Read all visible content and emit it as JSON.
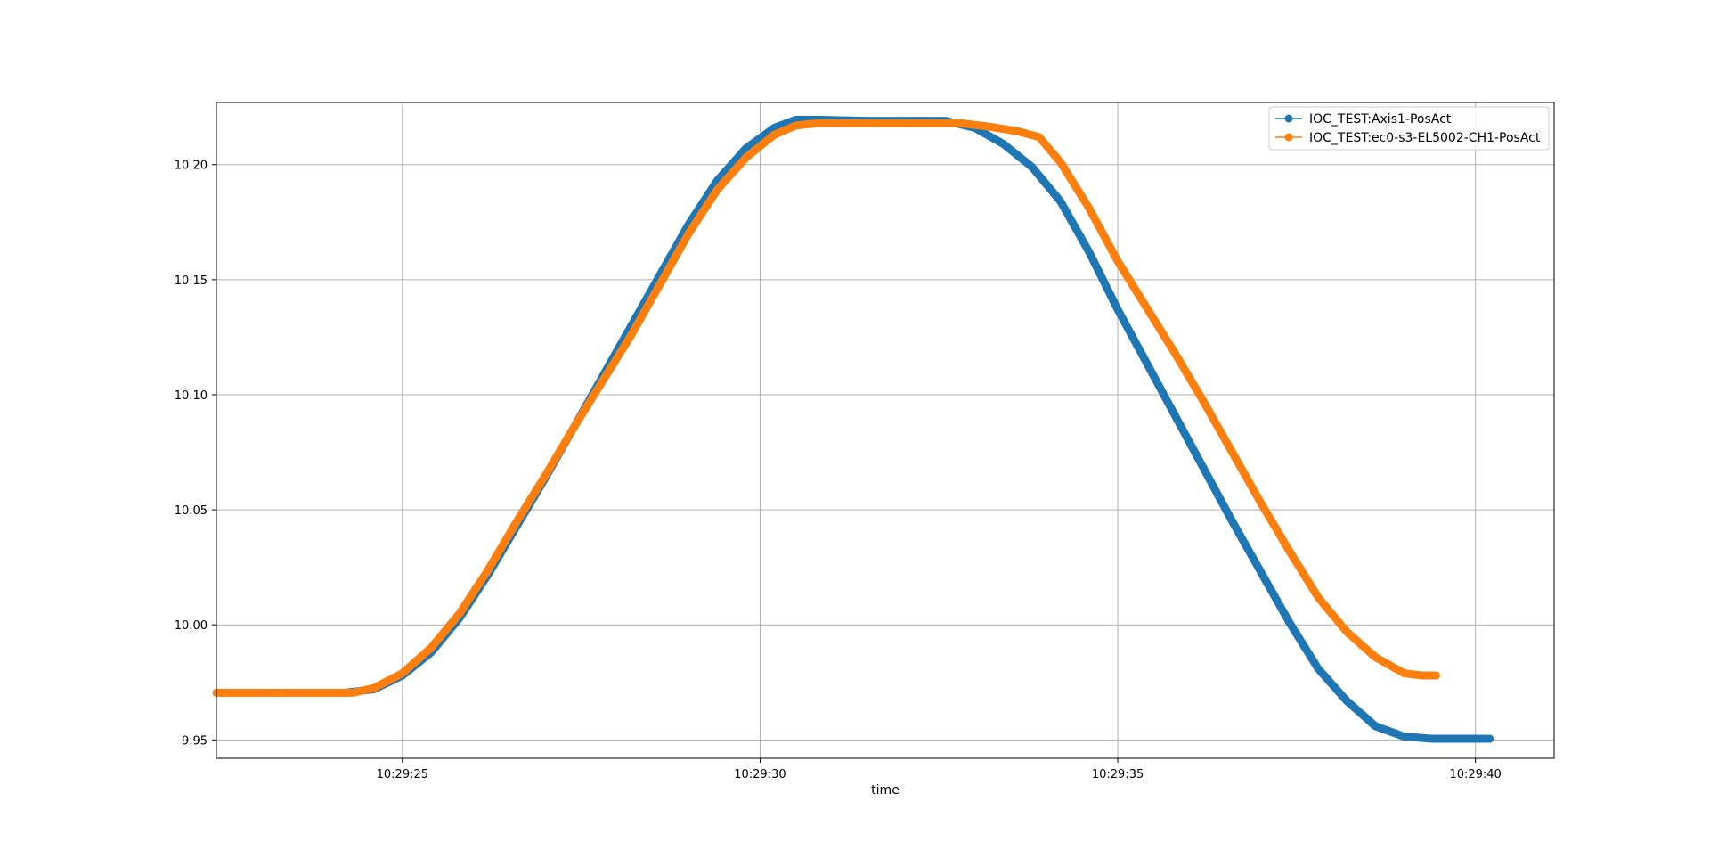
{
  "chart_data": {
    "type": "line",
    "title": "",
    "xlabel": "time",
    "ylabel": "",
    "x_unit": "time of day (HH:MM:SS)",
    "xlim": [
      "10:29:22.4",
      "10:29:41.1"
    ],
    "ylim": [
      9.942,
      10.227
    ],
    "x_ticks": [
      "10:29:25",
      "10:29:30",
      "10:29:35",
      "10:29:40"
    ],
    "y_ticks": [
      "9.95",
      "10.00",
      "10.05",
      "10.10",
      "10.15",
      "10.20"
    ],
    "grid": true,
    "legend_position": "top-right",
    "series": [
      {
        "name": "IOC_TEST:Axis1-PosAct",
        "color": "#1f77b4",
        "marker": "circle",
        "dense_markers": true,
        "points": [
          [
            "10:29:24.2",
            9.9705
          ],
          [
            "10:29:24.6",
            9.972
          ],
          [
            "10:29:25.0",
            9.978
          ],
          [
            "10:29:25.4",
            9.988
          ],
          [
            "10:29:25.8",
            10.003
          ],
          [
            "10:29:26.2",
            10.022
          ],
          [
            "10:29:26.6",
            10.043
          ],
          [
            "10:29:27.0",
            10.064
          ],
          [
            "10:29:27.4",
            10.086
          ],
          [
            "10:29:27.8",
            10.108
          ],
          [
            "10:29:28.2",
            10.13
          ],
          [
            "10:29:28.6",
            10.152
          ],
          [
            "10:29:29.0",
            10.174
          ],
          [
            "10:29:29.4",
            10.193
          ],
          [
            "10:29:29.8",
            10.207
          ],
          [
            "10:29:30.2",
            10.216
          ],
          [
            "10:29:30.5",
            10.2195
          ],
          [
            "10:29:30.8",
            10.2195
          ],
          [
            "10:29:31.5",
            10.219
          ],
          [
            "10:29:32.6",
            10.219
          ],
          [
            "10:29:33.0",
            10.216
          ],
          [
            "10:29:33.4",
            10.209
          ],
          [
            "10:29:33.8",
            10.199
          ],
          [
            "10:29:34.2",
            10.184
          ],
          [
            "10:29:34.6",
            10.162
          ],
          [
            "10:29:35.0",
            10.137
          ],
          [
            "10:29:35.4",
            10.114
          ],
          [
            "10:29:35.8",
            10.091
          ],
          [
            "10:29:36.2",
            10.068
          ],
          [
            "10:29:36.6",
            10.045
          ],
          [
            "10:29:37.0",
            10.023
          ],
          [
            "10:29:37.4",
            10.001
          ],
          [
            "10:29:37.8",
            9.981
          ],
          [
            "10:29:38.2",
            9.967
          ],
          [
            "10:29:38.6",
            9.956
          ],
          [
            "10:29:39.0",
            9.9515
          ],
          [
            "10:29:39.4",
            9.9505
          ],
          [
            "10:29:40.2",
            9.9505
          ]
        ]
      },
      {
        "name": "IOC_TEST:ec0-s3-EL5002-CH1-PosAct",
        "color": "#ff7f0e",
        "marker": "circle",
        "dense_markers": true,
        "points": [
          [
            "10:29:22.4",
            9.9705
          ],
          [
            "10:29:24.3",
            9.9705
          ],
          [
            "10:29:24.6",
            9.9725
          ],
          [
            "10:29:25.0",
            9.979
          ],
          [
            "10:29:25.4",
            9.99
          ],
          [
            "10:29:25.8",
            10.005
          ],
          [
            "10:29:26.2",
            10.024
          ],
          [
            "10:29:26.6",
            10.045
          ],
          [
            "10:29:27.0",
            10.065
          ],
          [
            "10:29:27.4",
            10.086
          ],
          [
            "10:29:27.8",
            10.106
          ],
          [
            "10:29:28.2",
            10.126
          ],
          [
            "10:29:28.6",
            10.148
          ],
          [
            "10:29:29.0",
            10.17
          ],
          [
            "10:29:29.4",
            10.189
          ],
          [
            "10:29:29.8",
            10.203
          ],
          [
            "10:29:30.2",
            10.213
          ],
          [
            "10:29:30.5",
            10.217
          ],
          [
            "10:29:30.8",
            10.218
          ],
          [
            "10:29:32.8",
            10.218
          ],
          [
            "10:29:33.2",
            10.2165
          ],
          [
            "10:29:33.6",
            10.2145
          ],
          [
            "10:29:33.9",
            10.212
          ],
          [
            "10:29:34.2",
            10.201
          ],
          [
            "10:29:34.6",
            10.181
          ],
          [
            "10:29:35.0",
            10.158
          ],
          [
            "10:29:35.4",
            10.138
          ],
          [
            "10:29:35.8",
            10.118
          ],
          [
            "10:29:36.2",
            10.097
          ],
          [
            "10:29:36.6",
            10.075
          ],
          [
            "10:29:37.0",
            10.053
          ],
          [
            "10:29:37.4",
            10.032
          ],
          [
            "10:29:37.8",
            10.012
          ],
          [
            "10:29:38.2",
            9.997
          ],
          [
            "10:29:38.6",
            9.986
          ],
          [
            "10:29:39.0",
            9.979
          ],
          [
            "10:29:39.25",
            9.978
          ],
          [
            "10:29:39.45",
            9.978
          ]
        ]
      }
    ]
  }
}
